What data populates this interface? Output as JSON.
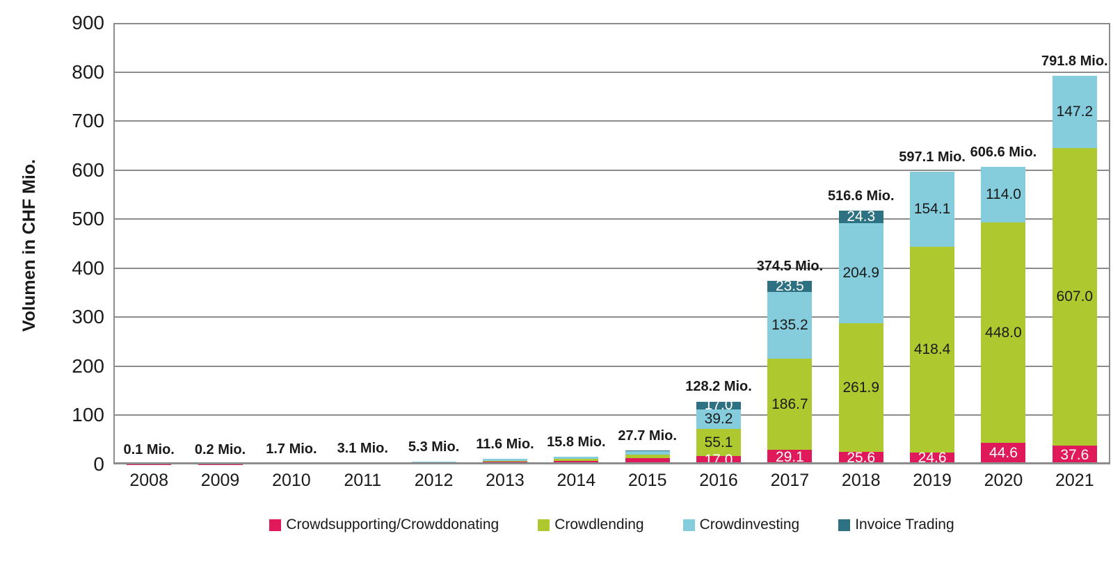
{
  "chart_data": {
    "type": "bar",
    "stacked": true,
    "title": "",
    "xlabel": "",
    "ylabel": "Volumen in CHF Mio.",
    "ylim": [
      0,
      900
    ],
    "ytick_step": 100,
    "grid": "horizontal",
    "legend_position": "bottom",
    "plot_border_color": "#8c8c8c",
    "text_color": "#1a1a1a",
    "categories": [
      "2008",
      "2009",
      "2010",
      "2011",
      "2012",
      "2013",
      "2014",
      "2015",
      "2016",
      "2017",
      "2018",
      "2019",
      "2020",
      "2021"
    ],
    "totals": [
      "0.1 Mio.",
      "0.2 Mio.",
      "1.7 Mio.",
      "3.1 Mio.",
      "5.3 Mio.",
      "11.6 Mio.",
      "15.8 Mio.",
      "27.7 Mio.",
      "128.2 Mio.",
      "374.5 Mio.",
      "516.6 Mio.",
      "597.1 Mio.",
      "606.6 Mio.",
      "791.8 Mio."
    ],
    "series": [
      {
        "name": "Crowdsupporting/Crowddonating",
        "color": "#e0195b",
        "label_text_color": "#ffffff",
        "values": [
          0.1,
          0.2,
          1.2,
          1.7,
          2.6,
          5.8,
          7.7,
          12.3,
          17.0,
          29.1,
          25.6,
          24.6,
          44.6,
          37.6
        ],
        "labels": [
          "",
          "",
          "",
          "",
          "",
          "",
          "",
          "",
          "17.0",
          "29.1",
          "25.6",
          "24.6",
          "44.6",
          "37.6"
        ]
      },
      {
        "name": "Crowdlending",
        "color": "#aec92f",
        "label_text_color": "#1a1a1a",
        "values": [
          0.0,
          0.0,
          0.1,
          0.1,
          0.9,
          1.8,
          3.5,
          7.9,
          55.1,
          186.7,
          261.9,
          418.4,
          448.0,
          607.0
        ],
        "labels": [
          "",
          "",
          "",
          "",
          "",
          "",
          "",
          "",
          "55.1",
          "186.7",
          "261.9",
          "418.4",
          "448.0",
          "607.0"
        ]
      },
      {
        "name": "Crowdinvesting",
        "color": "#85ccdd",
        "label_text_color": "#1a1a1a",
        "values": [
          0.0,
          0.0,
          0.4,
          1.3,
          1.8,
          4.0,
          4.6,
          7.1,
          39.2,
          135.2,
          204.9,
          154.1,
          114.0,
          147.2
        ],
        "labels": [
          "",
          "",
          "",
          "",
          "",
          "",
          "",
          "",
          "39.2",
          "135.2",
          "204.9",
          "154.1",
          "114.0",
          "147.2"
        ]
      },
      {
        "name": "Invoice Trading",
        "color": "#2e7183",
        "label_text_color": "#ffffff",
        "values": [
          0.0,
          0.0,
          0.0,
          0.0,
          0.0,
          0.0,
          0.0,
          0.4,
          17.0,
          23.5,
          24.3,
          0.0,
          0.0,
          0.0
        ],
        "labels": [
          "",
          "",
          "",
          "",
          "",
          "",
          "",
          "",
          "17.0",
          "23.5",
          "24.3",
          "",
          "",
          ""
        ]
      }
    ]
  }
}
